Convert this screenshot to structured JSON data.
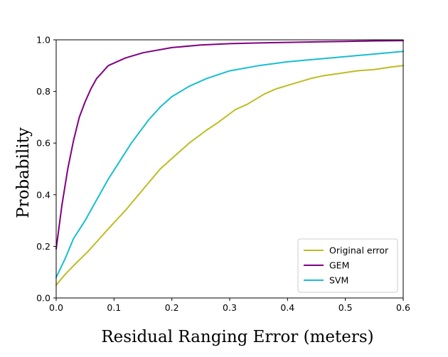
{
  "chart_data": {
    "type": "line",
    "title": "",
    "xlabel": "Residual Ranging Error (meters)",
    "ylabel": "Probability",
    "xlim": [
      0,
      0.6
    ],
    "ylim": [
      0,
      1.0
    ],
    "xticks": [
      "0.0",
      "0.1",
      "0.2",
      "0.3",
      "0.4",
      "0.5",
      "0.6"
    ],
    "yticks": [
      "0.0",
      "0.2",
      "0.4",
      "0.6",
      "0.8",
      "1.0"
    ],
    "grid": false,
    "legend_position": "lower-right",
    "series": [
      {
        "name": "Original error",
        "color": "#bcbd22",
        "x": [
          0,
          0.015,
          0.03,
          0.055,
          0.075,
          0.095,
          0.12,
          0.15,
          0.18,
          0.205,
          0.23,
          0.26,
          0.28,
          0.31,
          0.33,
          0.36,
          0.38,
          0.41,
          0.44,
          0.46,
          0.49,
          0.52,
          0.55,
          0.58,
          0.6
        ],
        "y": [
          0.05,
          0.09,
          0.125,
          0.18,
          0.23,
          0.28,
          0.34,
          0.42,
          0.5,
          0.55,
          0.6,
          0.65,
          0.68,
          0.73,
          0.75,
          0.79,
          0.81,
          0.83,
          0.85,
          0.86,
          0.87,
          0.88,
          0.885,
          0.895,
          0.9
        ]
      },
      {
        "name": "GEM",
        "color": "#800080",
        "x": [
          0,
          0.01,
          0.02,
          0.03,
          0.04,
          0.05,
          0.06,
          0.07,
          0.08,
          0.09,
          0.1,
          0.12,
          0.15,
          0.2,
          0.25,
          0.3,
          0.35,
          0.4,
          0.45,
          0.5,
          0.55,
          0.6
        ],
        "y": [
          0.19,
          0.36,
          0.5,
          0.61,
          0.7,
          0.76,
          0.81,
          0.85,
          0.875,
          0.9,
          0.91,
          0.93,
          0.95,
          0.97,
          0.98,
          0.985,
          0.988,
          0.99,
          0.992,
          0.994,
          0.996,
          0.997
        ]
      },
      {
        "name": "SVM",
        "color": "#17becf",
        "x": [
          0,
          0.015,
          0.03,
          0.05,
          0.07,
          0.09,
          0.11,
          0.13,
          0.16,
          0.18,
          0.2,
          0.23,
          0.26,
          0.3,
          0.35,
          0.4,
          0.45,
          0.5,
          0.55,
          0.6
        ],
        "y": [
          0.08,
          0.15,
          0.23,
          0.3,
          0.38,
          0.46,
          0.53,
          0.6,
          0.69,
          0.74,
          0.78,
          0.82,
          0.85,
          0.88,
          0.9,
          0.915,
          0.925,
          0.935,
          0.945,
          0.955
        ]
      }
    ]
  }
}
